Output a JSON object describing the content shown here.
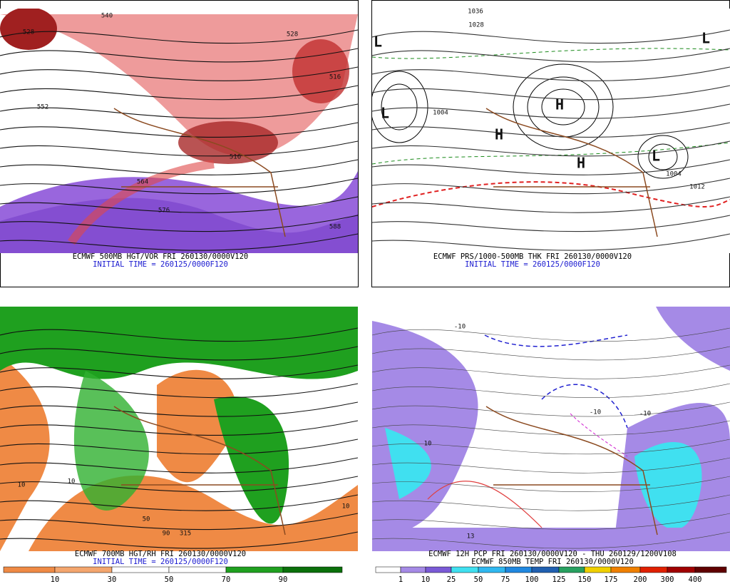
{
  "panels": [
    {
      "captions": [
        "ECMWF 500MB HGT/VOR FRI 260130/0000V120",
        "INITIAL TIME = 260125/0000F120"
      ],
      "labels": [
        "540",
        "528",
        "516",
        "552",
        "564",
        "576",
        "588",
        "528",
        "516"
      ]
    },
    {
      "captions": [
        "ECMWF PRS/1000-500MB THK FRI 260130/0000V120",
        "INITIAL TIME = 260125/0000F120"
      ],
      "labels": [
        "1036",
        "1028",
        "1004",
        "1012",
        "1004",
        "L",
        "L",
        "L",
        "H",
        "H",
        "H",
        "L"
      ]
    },
    {
      "captions": [
        "ECMWF 700MB HGT/RH FRI 260130/0000V120",
        "INITIAL TIME = 260125/0000F120"
      ],
      "labels": [
        "10",
        "10",
        "50",
        "90",
        "315",
        "10"
      ],
      "colorbar": {
        "labels": [
          "10",
          "30",
          "50",
          "70",
          "90"
        ],
        "colors": [
          "#ef8a45",
          "#f4a66e",
          "#ffffff",
          "#ffffff",
          "#1fa01f",
          "#0a700a"
        ]
      }
    },
    {
      "captions": [
        "ECMWF 12H PCP FRI 260130/0000V120 - THU 260129/1200V108",
        "ECMWF 850MB TEMP FRI 260130/0000V120"
      ],
      "labels": [
        "-10",
        "-10",
        "10",
        "-10",
        "13"
      ],
      "colorbar": {
        "labels": [
          "1",
          "10",
          "25",
          "50",
          "75",
          "100",
          "125",
          "150",
          "175",
          "200",
          "300",
          "400"
        ],
        "colors": [
          "#ffffff",
          "#a58ae6",
          "#7a5ad6",
          "#40e0f0",
          "#30b8f0",
          "#2088e0",
          "#2060b0",
          "#28a060",
          "#f0d000",
          "#f08000",
          "#e02000",
          "#a00000",
          "#600000"
        ]
      }
    }
  ]
}
